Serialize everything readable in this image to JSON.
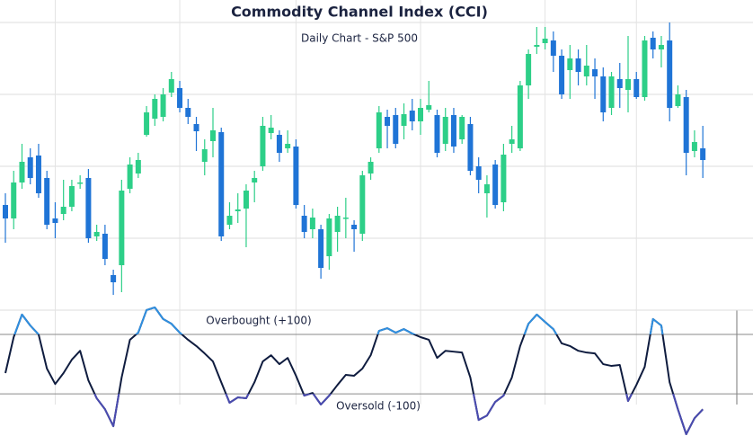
{
  "chart_data": [
    {
      "type": "candlestick",
      "title": "Commodity Channel Index (CCI)",
      "subtitle": "Daily Chart - S&P 500",
      "open": [
        117,
        102,
        142,
        170,
        172,
        147,
        102,
        107,
        115,
        141,
        147,
        82,
        85,
        39,
        50,
        135,
        152,
        195,
        213,
        215,
        242,
        247,
        225,
        207,
        165,
        188,
        198,
        95,
        110,
        113,
        142,
        160,
        197,
        195,
        180,
        182,
        105,
        90,
        90,
        60,
        87,
        102,
        95,
        85,
        152,
        180,
        215,
        217,
        205,
        222,
        210,
        223,
        217,
        185,
        217,
        190,
        207,
        160,
        130,
        162,
        120,
        185,
        180,
        250,
        293,
        297,
        300,
        283,
        267,
        280,
        260,
        268,
        260,
        225,
        257,
        245,
        257,
        237,
        303,
        290,
        300,
        227,
        237,
        177,
        180
      ],
      "high": [
        130,
        155,
        185,
        180,
        185,
        155,
        120,
        145,
        145,
        150,
        157,
        95,
        95,
        45,
        145,
        170,
        175,
        227,
        240,
        247,
        265,
        255,
        235,
        215,
        190,
        225,
        203,
        120,
        130,
        140,
        155,
        215,
        217,
        200,
        200,
        190,
        117,
        113,
        95,
        107,
        115,
        125,
        100,
        155,
        170,
        227,
        223,
        225,
        230,
        235,
        235,
        255,
        223,
        225,
        225,
        217,
        215,
        170,
        150,
        167,
        185,
        205,
        255,
        290,
        315,
        315,
        310,
        290,
        295,
        290,
        295,
        280,
        270,
        265,
        275,
        305,
        265,
        305,
        310,
        305,
        320,
        250,
        245,
        200,
        205
      ],
      "low": [
        75,
        90,
        135,
        140,
        125,
        90,
        80,
        100,
        110,
        135,
        75,
        77,
        50,
        17,
        20,
        130,
        147,
        193,
        205,
        210,
        237,
        220,
        207,
        177,
        150,
        170,
        77,
        90,
        97,
        70,
        120,
        155,
        190,
        165,
        175,
        113,
        80,
        80,
        35,
        45,
        65,
        80,
        65,
        77,
        145,
        175,
        180,
        180,
        190,
        200,
        195,
        220,
        170,
        177,
        175,
        185,
        150,
        130,
        103,
        113,
        110,
        175,
        177,
        235,
        285,
        290,
        265,
        235,
        235,
        250,
        250,
        235,
        210,
        217,
        225,
        220,
        235,
        233,
        280,
        270,
        210,
        225,
        150,
        170,
        147
      ],
      "close": [
        102,
        142,
        165,
        147,
        130,
        95,
        97,
        115,
        138,
        142,
        80,
        87,
        57,
        31,
        133,
        162,
        167,
        220,
        235,
        240,
        257,
        225,
        215,
        199,
        179,
        200,
        82,
        105,
        112,
        133,
        147,
        205,
        203,
        175,
        185,
        117,
        87,
        103,
        47,
        102,
        105,
        103,
        90,
        150,
        165,
        220,
        205,
        185,
        218,
        210,
        225,
        228,
        175,
        215,
        182,
        215,
        155,
        145,
        140,
        117,
        173,
        190,
        250,
        285,
        295,
        302,
        283,
        240,
        280,
        265,
        272,
        260,
        220,
        260,
        247,
        257,
        237,
        300,
        290,
        295,
        225,
        240,
        175,
        187,
        167
      ],
      "up_color": "#2dcf88",
      "down_color": "#1f74d6",
      "ylim": [
        0,
        345
      ],
      "yticks": [
        0,
        80,
        160,
        240,
        320
      ],
      "xticks": [
        6,
        21,
        35,
        50,
        65,
        76
      ],
      "grid": true
    },
    {
      "type": "line",
      "color": "#0f1c3f",
      "overbought_color": "#2f8fe0",
      "oversold_color": "#4a4bb0",
      "values": [
        -30,
        91,
        167,
        130,
        100,
        -15,
        -67,
        -30,
        15,
        45,
        -55,
        -115,
        -152,
        -209,
        -45,
        82,
        106,
        182,
        191,
        152,
        136,
        106,
        82,
        61,
        36,
        9,
        -61,
        -130,
        -112,
        -115,
        -61,
        9,
        30,
        0,
        21,
        -39,
        -106,
        -97,
        -136,
        -106,
        -70,
        -36,
        -39,
        -15,
        30,
        112,
        121,
        106,
        118,
        103,
        91,
        82,
        21,
        45,
        42,
        39,
        -45,
        -188,
        -173,
        -127,
        -106,
        -45,
        61,
        136,
        167,
        142,
        118,
        70,
        61,
        45,
        39,
        36,
        0,
        -6,
        -3,
        -124,
        -70,
        -9,
        152,
        130,
        -61,
        -152,
        -236,
        -182,
        -152
      ],
      "ylim": [
        -242,
        200
      ],
      "yticks": [
        -100,
        100
      ],
      "annotations": [
        {
          "text": "Overbought (+100)",
          "value": 100
        },
        {
          "text": "Oversold (-100)",
          "value": -100
        }
      ]
    }
  ]
}
